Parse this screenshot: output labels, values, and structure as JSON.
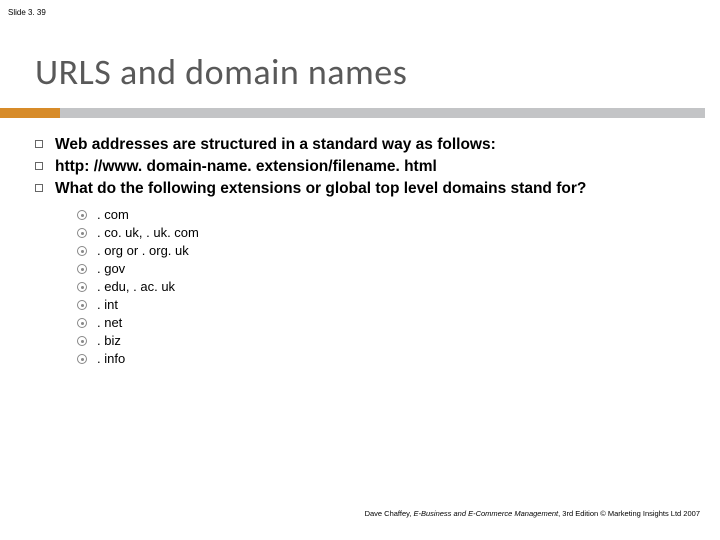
{
  "slide_label": "Slide 3. 39",
  "title": "URLS and domain names",
  "accent_color": "#d78b29",
  "underline_color": "#c3c4c6",
  "main_items": [
    "Web addresses are structured in a standard way as follows:",
    "http: //www. domain-name. extension/filename. html",
    "What do the following extensions or global top level domains stand for?"
  ],
  "sub_items": [
    ". com",
    ". co. uk, . uk. com",
    ". org or . org. uk",
    ". gov",
    ". edu, . ac. uk",
    ". int",
    ". net",
    ". biz",
    ". info"
  ],
  "footer": {
    "author": "Dave Chaffey, ",
    "book": "E-Business and E-Commerce Management",
    "rest": ", 3rd Edition © Marketing Insights Ltd 2007"
  }
}
